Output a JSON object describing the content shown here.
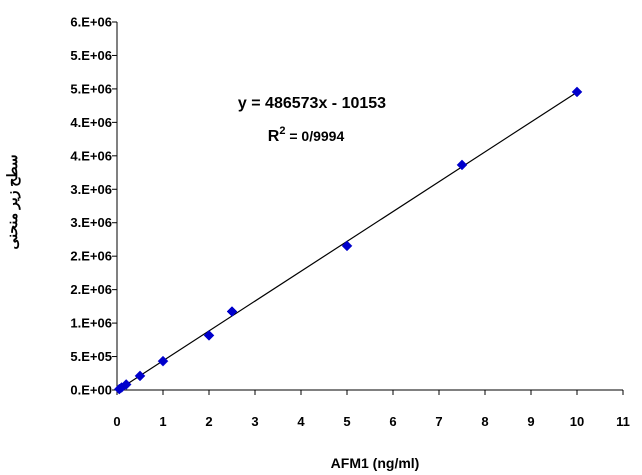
{
  "chart_data": {
    "type": "scatter",
    "title": "",
    "xlabel": "AFM1 (ng/ml)",
    "ylabel": "سطح زیر منحنی",
    "xlim": [
      0,
      11
    ],
    "ylim": [
      0,
      6000000
    ],
    "x_ticks": [
      "0",
      "1",
      "2",
      "3",
      "4",
      "5",
      "6",
      "7",
      "8",
      "9",
      "10",
      "11"
    ],
    "y_ticks": [
      "0.E+00",
      "5.E+05",
      "1.E+06",
      "2.E+06",
      "2.E+06",
      "3.E+06",
      "3.E+06",
      "4.E+06",
      "4.E+06",
      "5.E+06",
      "5.E+06",
      "6.E+06"
    ],
    "series": [
      {
        "color": "#0000CC",
        "marker": "diamond",
        "x": [
          0.05,
          0.1,
          0.2,
          0.5,
          1,
          2,
          2.5,
          5,
          7.5,
          10
        ],
        "y": [
          15000,
          40000,
          90000,
          230000,
          470000,
          890000,
          1280000,
          2350000,
          3670000,
          4860000
        ]
      }
    ],
    "trendline": {
      "slope": 486573,
      "intercept": -10153,
      "color": "#000000"
    },
    "equation": "y = 486573x - 10153",
    "r2_label": "R",
    "r2_sup": "2",
    "r2_value": " = 0/9994",
    "grid": false,
    "legend": "none"
  }
}
